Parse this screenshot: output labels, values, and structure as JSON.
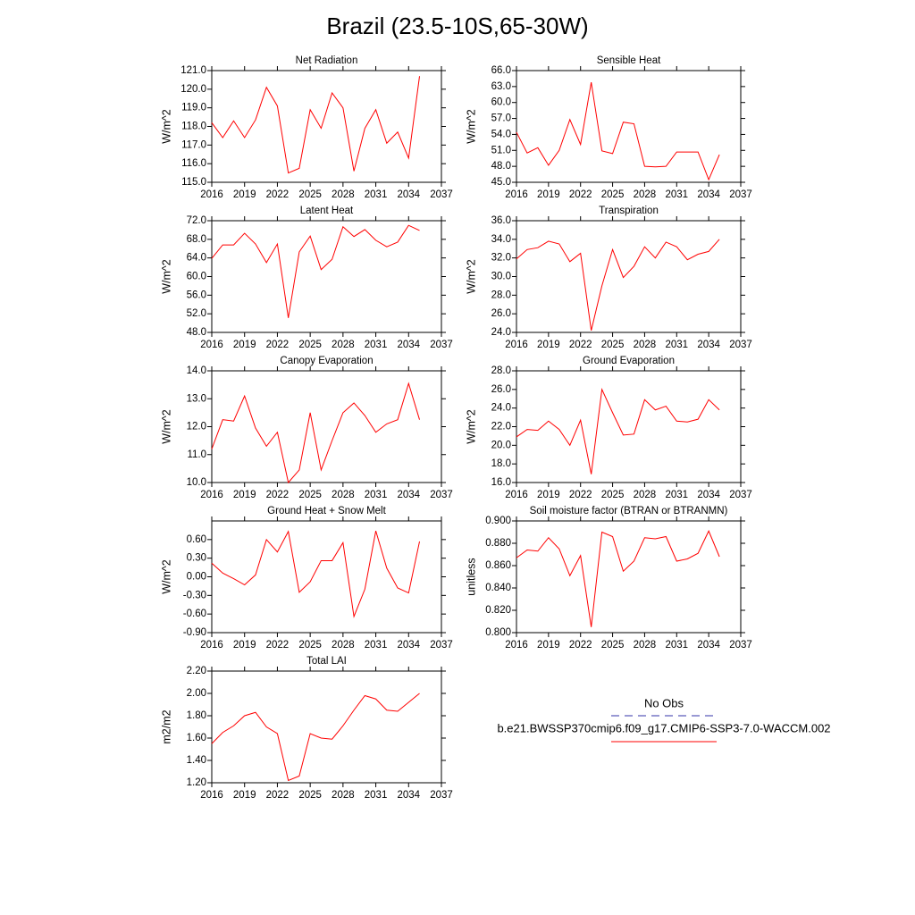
{
  "title": "Brazil (23.5-10S,65-30W)",
  "legend": [
    {
      "name": "No Obs",
      "color": "#3333aa"
    },
    {
      "name": "b.e21.BWSSP370cmip6.f09_g17.CMIP6-SSP3-7.0-WACCM.002",
      "color": "#ff0000"
    }
  ],
  "chart_data": [
    {
      "type": "line",
      "title": "Net Radiation",
      "y_label": "W/m^2",
      "x": [
        2016,
        2017,
        2018,
        2019,
        2020,
        2021,
        2022,
        2023,
        2024,
        2025,
        2026,
        2027,
        2028,
        2029,
        2030,
        2031,
        2032,
        2033,
        2034,
        2035
      ],
      "series": [
        {
          "color": "#ff0000",
          "values": [
            118.2,
            117.4,
            118.3,
            117.4,
            118.35,
            120.1,
            119.1,
            115.5,
            115.75,
            118.9,
            117.9,
            119.8,
            119.0,
            115.6,
            117.9,
            118.9,
            117.1,
            117.7,
            116.3,
            120.7
          ]
        }
      ],
      "xlim": [
        2016,
        2037
      ],
      "xticks": [
        2016,
        2019,
        2022,
        2025,
        2028,
        2031,
        2034,
        2037
      ],
      "ylim": [
        115,
        121
      ],
      "yticks": [
        {
          "value": 115,
          "label": "115.0"
        },
        {
          "value": 116,
          "label": "116.0"
        },
        {
          "value": 117,
          "label": "117.0"
        },
        {
          "value": 118,
          "label": "118.0"
        },
        {
          "value": 119,
          "label": "119.0"
        },
        {
          "value": 120,
          "label": "120.0"
        },
        {
          "value": 121,
          "label": "121.0"
        }
      ]
    },
    {
      "type": "line",
      "title": "Sensible Heat",
      "y_label": "W/m^2",
      "x": [
        2016,
        2017,
        2018,
        2019,
        2020,
        2021,
        2022,
        2023,
        2024,
        2025,
        2026,
        2027,
        2028,
        2029,
        2030,
        2031,
        2032,
        2033,
        2034,
        2035
      ],
      "series": [
        {
          "color": "#ff0000",
          "values": [
            54.4,
            50.5,
            51.5,
            48.2,
            51.0,
            56.8,
            52.1,
            63.8,
            50.9,
            50.4,
            56.3,
            56.0,
            48.0,
            47.9,
            48.0,
            50.7,
            50.7,
            50.7,
            45.5,
            50.2
          ]
        }
      ],
      "xlim": [
        2016,
        2037
      ],
      "xticks": [
        2016,
        2019,
        2022,
        2025,
        2028,
        2031,
        2034,
        2037
      ],
      "ylim": [
        45,
        66
      ],
      "yticks": [
        {
          "value": 45,
          "label": "45.0"
        },
        {
          "value": 48,
          "label": "48.0"
        },
        {
          "value": 51,
          "label": "51.0"
        },
        {
          "value": 54,
          "label": "54.0"
        },
        {
          "value": 57,
          "label": "57.0"
        },
        {
          "value": 60,
          "label": "60.0"
        },
        {
          "value": 63,
          "label": "63.0"
        },
        {
          "value": 66,
          "label": "66.0"
        }
      ]
    },
    {
      "type": "line",
      "title": "Latent Heat",
      "y_label": "W/m^2",
      "x": [
        2016,
        2017,
        2018,
        2019,
        2020,
        2021,
        2022,
        2023,
        2024,
        2025,
        2026,
        2027,
        2028,
        2029,
        2030,
        2031,
        2032,
        2033,
        2034,
        2035
      ],
      "series": [
        {
          "color": "#ff0000",
          "values": [
            63.9,
            66.8,
            66.8,
            69.3,
            67.0,
            63.0,
            67.0,
            51.1,
            65.3,
            68.7,
            61.5,
            63.7,
            70.7,
            68.6,
            70.1,
            67.8,
            66.4,
            67.4,
            71.0,
            69.9
          ]
        }
      ],
      "xlim": [
        2016,
        2037
      ],
      "xticks": [
        2016,
        2019,
        2022,
        2025,
        2028,
        2031,
        2034,
        2037
      ],
      "ylim": [
        48,
        72
      ],
      "yticks": [
        {
          "value": 48,
          "label": "48.0"
        },
        {
          "value": 52,
          "label": "52.0"
        },
        {
          "value": 56,
          "label": "56.0"
        },
        {
          "value": 60,
          "label": "60.0"
        },
        {
          "value": 64,
          "label": "64.0"
        },
        {
          "value": 68,
          "label": "68.0"
        },
        {
          "value": 72,
          "label": "72.0"
        }
      ]
    },
    {
      "type": "line",
      "title": "Transpiration",
      "y_label": "W/m^2",
      "x": [
        2016,
        2017,
        2018,
        2019,
        2020,
        2021,
        2022,
        2023,
        2024,
        2025,
        2026,
        2027,
        2028,
        2029,
        2030,
        2031,
        2032,
        2033,
        2034,
        2035
      ],
      "series": [
        {
          "color": "#ff0000",
          "values": [
            31.9,
            32.9,
            33.1,
            33.8,
            33.5,
            31.6,
            32.5,
            24.2,
            29.0,
            32.9,
            29.9,
            31.1,
            33.2,
            32.0,
            33.7,
            33.2,
            31.8,
            32.4,
            32.7,
            34.0
          ]
        }
      ],
      "xlim": [
        2016,
        2037
      ],
      "xticks": [
        2016,
        2019,
        2022,
        2025,
        2028,
        2031,
        2034,
        2037
      ],
      "ylim": [
        24,
        36
      ],
      "yticks": [
        {
          "value": 24,
          "label": "24.0"
        },
        {
          "value": 26,
          "label": "26.0"
        },
        {
          "value": 28,
          "label": "28.0"
        },
        {
          "value": 30,
          "label": "30.0"
        },
        {
          "value": 32,
          "label": "32.0"
        },
        {
          "value": 34,
          "label": "34.0"
        },
        {
          "value": 36,
          "label": "36.0"
        }
      ]
    },
    {
      "type": "line",
      "title": "Canopy Evaporation",
      "y_label": "W/m^2",
      "x": [
        2016,
        2017,
        2018,
        2019,
        2020,
        2021,
        2022,
        2023,
        2024,
        2025,
        2026,
        2027,
        2028,
        2029,
        2030,
        2031,
        2032,
        2033,
        2034,
        2035
      ],
      "series": [
        {
          "color": "#ff0000",
          "values": [
            11.2,
            12.25,
            12.2,
            13.1,
            11.95,
            11.3,
            11.8,
            10.0,
            10.45,
            12.5,
            10.45,
            11.5,
            12.5,
            12.85,
            12.4,
            11.8,
            12.1,
            12.25,
            13.55,
            12.25
          ]
        }
      ],
      "xlim": [
        2016,
        2037
      ],
      "xticks": [
        2016,
        2019,
        2022,
        2025,
        2028,
        2031,
        2034,
        2037
      ],
      "ylim": [
        10,
        14
      ],
      "yticks": [
        {
          "value": 10,
          "label": "10.0"
        },
        {
          "value": 11,
          "label": "11.0"
        },
        {
          "value": 12,
          "label": "12.0"
        },
        {
          "value": 13,
          "label": "13.0"
        },
        {
          "value": 14,
          "label": "14.0"
        }
      ]
    },
    {
      "type": "line",
      "title": "Ground Evaporation",
      "y_label": "W/m^2",
      "x": [
        2016,
        2017,
        2018,
        2019,
        2020,
        2021,
        2022,
        2023,
        2024,
        2025,
        2026,
        2027,
        2028,
        2029,
        2030,
        2031,
        2032,
        2033,
        2034,
        2035
      ],
      "series": [
        {
          "color": "#ff0000",
          "values": [
            20.9,
            21.7,
            21.6,
            22.6,
            21.7,
            20.0,
            22.7,
            16.9,
            26.0,
            23.5,
            21.1,
            21.2,
            24.9,
            23.8,
            24.2,
            22.6,
            22.5,
            22.8,
            24.9,
            23.8
          ]
        }
      ],
      "xlim": [
        2016,
        2037
      ],
      "xticks": [
        2016,
        2019,
        2022,
        2025,
        2028,
        2031,
        2034,
        2037
      ],
      "ylim": [
        16,
        28
      ],
      "yticks": [
        {
          "value": 16,
          "label": "16.0"
        },
        {
          "value": 18,
          "label": "18.0"
        },
        {
          "value": 20,
          "label": "20.0"
        },
        {
          "value": 22,
          "label": "22.0"
        },
        {
          "value": 24,
          "label": "24.0"
        },
        {
          "value": 26,
          "label": "26.0"
        },
        {
          "value": 28,
          "label": "28.0"
        }
      ]
    },
    {
      "type": "line",
      "title": "Ground Heat + Snow Melt",
      "y_label": "W/m^2",
      "x": [
        2016,
        2017,
        2018,
        2019,
        2020,
        2021,
        2022,
        2023,
        2024,
        2025,
        2026,
        2027,
        2028,
        2029,
        2030,
        2031,
        2032,
        2033,
        2034,
        2035
      ],
      "series": [
        {
          "color": "#ff0000",
          "values": [
            0.22,
            0.06,
            -0.03,
            -0.13,
            0.03,
            0.6,
            0.4,
            0.73,
            -0.25,
            -0.08,
            0.26,
            0.26,
            0.55,
            -0.64,
            -0.2,
            0.74,
            0.14,
            -0.18,
            -0.26,
            0.57
          ]
        }
      ],
      "xlim": [
        2016,
        2037
      ],
      "xticks": [
        2016,
        2019,
        2022,
        2025,
        2028,
        2031,
        2034,
        2037
      ],
      "ylim": [
        -0.9,
        0.9
      ],
      "yticks": [
        {
          "value": -0.9,
          "label": "-0.90"
        },
        {
          "value": -0.6,
          "label": "-0.60"
        },
        {
          "value": -0.3,
          "label": "-0.30"
        },
        {
          "value": 0,
          "label": "0.00"
        },
        {
          "value": 0.3,
          "label": "0.30"
        },
        {
          "value": 0.6,
          "label": "0.60"
        }
      ]
    },
    {
      "type": "line",
      "title": "Soil moisture factor (BTRAN or BTRANMN)",
      "y_label": "unitless",
      "x": [
        2016,
        2017,
        2018,
        2019,
        2020,
        2021,
        2022,
        2023,
        2024,
        2025,
        2026,
        2027,
        2028,
        2029,
        2030,
        2031,
        2032,
        2033,
        2034,
        2035
      ],
      "series": [
        {
          "color": "#ff0000",
          "values": [
            0.867,
            0.874,
            0.873,
            0.885,
            0.875,
            0.851,
            0.869,
            0.805,
            0.89,
            0.886,
            0.855,
            0.864,
            0.885,
            0.884,
            0.886,
            0.864,
            0.866,
            0.871,
            0.891,
            0.868
          ]
        }
      ],
      "xlim": [
        2016,
        2037
      ],
      "xticks": [
        2016,
        2019,
        2022,
        2025,
        2028,
        2031,
        2034,
        2037
      ],
      "ylim": [
        0.8,
        0.9
      ],
      "yticks": [
        {
          "value": 0.8,
          "label": "0.800"
        },
        {
          "value": 0.82,
          "label": "0.820"
        },
        {
          "value": 0.84,
          "label": "0.840"
        },
        {
          "value": 0.86,
          "label": "0.860"
        },
        {
          "value": 0.88,
          "label": "0.880"
        },
        {
          "value": 0.9,
          "label": "0.900"
        }
      ]
    },
    {
      "type": "line",
      "title": "Total LAI",
      "y_label": "m2/m2",
      "x": [
        2016,
        2017,
        2018,
        2019,
        2020,
        2021,
        2022,
        2023,
        2024,
        2025,
        2026,
        2027,
        2028,
        2029,
        2030,
        2031,
        2032,
        2033,
        2034,
        2035
      ],
      "series": [
        {
          "color": "#ff0000",
          "values": [
            1.55,
            1.65,
            1.71,
            1.8,
            1.83,
            1.7,
            1.64,
            1.22,
            1.26,
            1.64,
            1.6,
            1.59,
            1.71,
            1.85,
            1.98,
            1.95,
            1.85,
            1.84,
            1.92,
            2.0
          ]
        }
      ],
      "xlim": [
        2016,
        2037
      ],
      "xticks": [
        2016,
        2019,
        2022,
        2025,
        2028,
        2031,
        2034,
        2037
      ],
      "ylim": [
        1.2,
        2.2
      ],
      "yticks": [
        {
          "value": 1.2,
          "label": "1.20"
        },
        {
          "value": 1.4,
          "label": "1.40"
        },
        {
          "value": 1.6,
          "label": "1.60"
        },
        {
          "value": 1.8,
          "label": "1.80"
        },
        {
          "value": 2.0,
          "label": "2.00"
        },
        {
          "value": 2.2,
          "label": "2.20"
        }
      ]
    }
  ]
}
